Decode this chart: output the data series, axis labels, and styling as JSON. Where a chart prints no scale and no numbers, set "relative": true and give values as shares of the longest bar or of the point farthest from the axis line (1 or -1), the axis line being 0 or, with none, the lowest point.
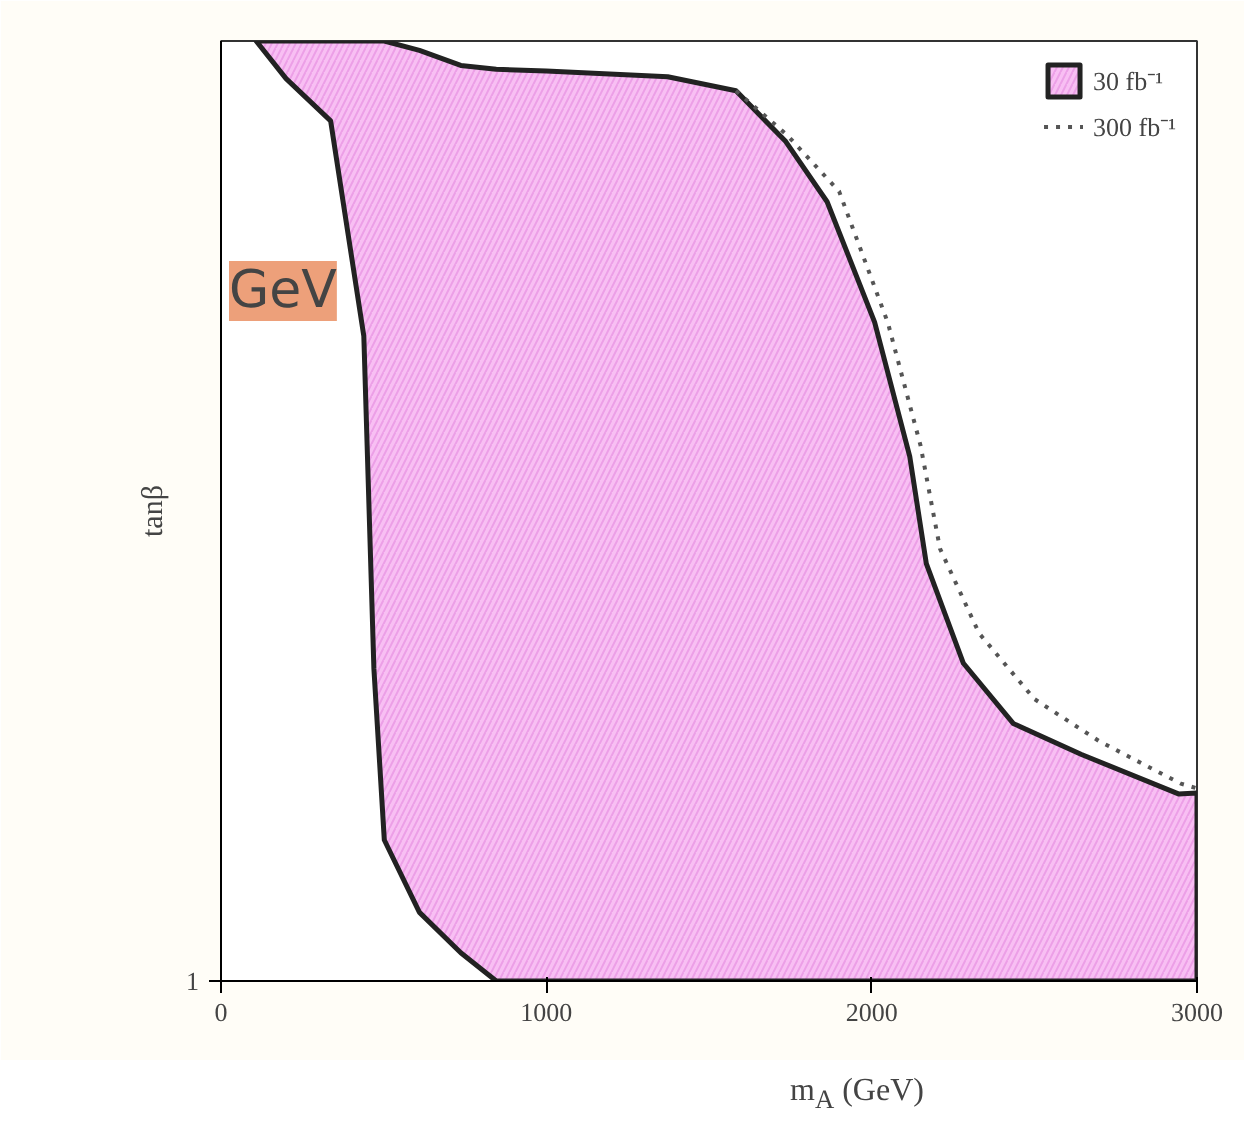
{
  "chart_data": {
    "type": "area",
    "relative": true,
    "xlabel": "m$_{A}$ (GeV)",
    "ylabel": "tanβ",
    "xlim": [
      0,
      3000
    ],
    "xticks": [
      0,
      1000,
      2000,
      3000
    ],
    "legend": "top right",
    "grid": false,
    "annotations": [
      "1",
      "GeV"
    ],
    "series": [
      {
        "name": "30 fb⁻¹",
        "type": "area",
        "color": "#f7b8f2",
        "x": [
          108,
          502,
          610,
          737,
          846,
          1000,
          1373,
          1583,
          1736,
          1863,
          2009,
          2117,
          2168,
          2282,
          2435,
          2645,
          2943,
          3000,
          3000,
          846,
          737,
          610,
          502,
          470,
          439,
          337,
          200
        ],
        "values": [
          1.0,
          1.0,
          0.99,
          0.974,
          0.97,
          0.968,
          0.962,
          0.947,
          0.893,
          0.829,
          0.701,
          0.558,
          0.444,
          0.338,
          0.274,
          0.241,
          0.199,
          0.2,
          0,
          0,
          0.03,
          0.073,
          0.15,
          0.332,
          0.686,
          0.915,
          0.96
        ]
      },
      {
        "name": "300 fb⁻¹",
        "type": "line",
        "line_style": "dotted",
        "color": "#555555",
        "x": [
          1583,
          1740,
          1900,
          2050,
          2150,
          2210,
          2330,
          2500,
          2700,
          2950,
          3000
        ],
        "values": [
          0.947,
          0.9,
          0.84,
          0.7,
          0.57,
          0.46,
          0.37,
          0.3,
          0.255,
          0.21,
          0.205
        ]
      }
    ]
  }
}
